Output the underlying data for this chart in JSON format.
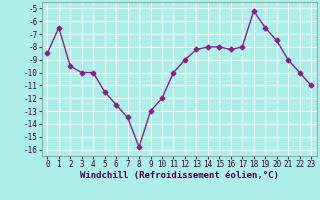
{
  "x": [
    0,
    1,
    2,
    3,
    4,
    5,
    6,
    7,
    8,
    9,
    10,
    11,
    12,
    13,
    14,
    15,
    16,
    17,
    18,
    19,
    20,
    21,
    22,
    23
  ],
  "y": [
    -8.5,
    -6.5,
    -9.5,
    -10.0,
    -10.0,
    -11.5,
    -12.5,
    -13.5,
    -15.8,
    -13.0,
    -12.0,
    -10.0,
    -9.0,
    -8.2,
    -8.0,
    -8.0,
    -8.2,
    -8.0,
    -5.2,
    -6.5,
    -7.5,
    -9.0,
    -10.0,
    -11.0
  ],
  "line_color": "#882288",
  "marker": "D",
  "marker_size": 2.5,
  "line_width": 1.0,
  "bg_color": "#aeeee8",
  "grid_color": "#ffffff",
  "xlabel": "Windchill (Refroidissement éolien,°C)",
  "xlabel_fontsize": 6.5,
  "tick_fontsize": 5.5,
  "ylim": [
    -16.5,
    -4.5
  ],
  "xlim": [
    -0.5,
    23.5
  ],
  "yticks": [
    -5,
    -6,
    -7,
    -8,
    -9,
    -10,
    -11,
    -12,
    -13,
    -14,
    -15,
    -16
  ],
  "xticks": [
    0,
    1,
    2,
    3,
    4,
    5,
    6,
    7,
    8,
    9,
    10,
    11,
    12,
    13,
    14,
    15,
    16,
    17,
    18,
    19,
    20,
    21,
    22,
    23
  ]
}
